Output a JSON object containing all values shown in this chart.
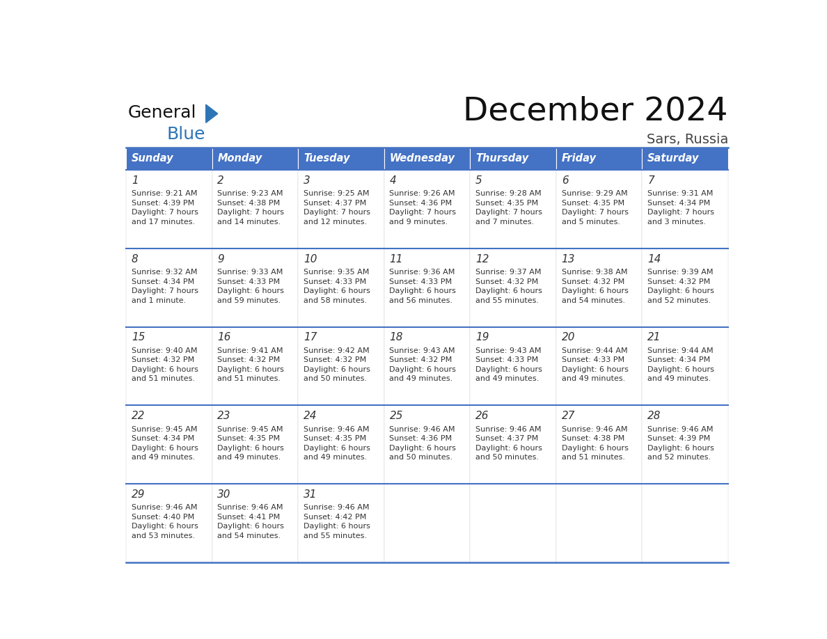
{
  "title": "December 2024",
  "subtitle": "Sars, Russia",
  "header_color": "#4472C4",
  "header_text_color": "#FFFFFF",
  "cell_bg_color": "#FFFFFF",
  "border_color": "#4472C4",
  "text_color": "#333333",
  "days_of_week": [
    "Sunday",
    "Monday",
    "Tuesday",
    "Wednesday",
    "Thursday",
    "Friday",
    "Saturday"
  ],
  "weeks": [
    [
      {
        "day": 1,
        "sunrise": "9:21 AM",
        "sunset": "4:39 PM",
        "daylight_hours": 7,
        "daylight_minutes": 17
      },
      {
        "day": 2,
        "sunrise": "9:23 AM",
        "sunset": "4:38 PM",
        "daylight_hours": 7,
        "daylight_minutes": 14
      },
      {
        "day": 3,
        "sunrise": "9:25 AM",
        "sunset": "4:37 PM",
        "daylight_hours": 7,
        "daylight_minutes": 12
      },
      {
        "day": 4,
        "sunrise": "9:26 AM",
        "sunset": "4:36 PM",
        "daylight_hours": 7,
        "daylight_minutes": 9
      },
      {
        "day": 5,
        "sunrise": "9:28 AM",
        "sunset": "4:35 PM",
        "daylight_hours": 7,
        "daylight_minutes": 7
      },
      {
        "day": 6,
        "sunrise": "9:29 AM",
        "sunset": "4:35 PM",
        "daylight_hours": 7,
        "daylight_minutes": 5
      },
      {
        "day": 7,
        "sunrise": "9:31 AM",
        "sunset": "4:34 PM",
        "daylight_hours": 7,
        "daylight_minutes": 3
      }
    ],
    [
      {
        "day": 8,
        "sunrise": "9:32 AM",
        "sunset": "4:34 PM",
        "daylight_hours": 7,
        "daylight_minutes": 1
      },
      {
        "day": 9,
        "sunrise": "9:33 AM",
        "sunset": "4:33 PM",
        "daylight_hours": 6,
        "daylight_minutes": 59
      },
      {
        "day": 10,
        "sunrise": "9:35 AM",
        "sunset": "4:33 PM",
        "daylight_hours": 6,
        "daylight_minutes": 58
      },
      {
        "day": 11,
        "sunrise": "9:36 AM",
        "sunset": "4:33 PM",
        "daylight_hours": 6,
        "daylight_minutes": 56
      },
      {
        "day": 12,
        "sunrise": "9:37 AM",
        "sunset": "4:32 PM",
        "daylight_hours": 6,
        "daylight_minutes": 55
      },
      {
        "day": 13,
        "sunrise": "9:38 AM",
        "sunset": "4:32 PM",
        "daylight_hours": 6,
        "daylight_minutes": 54
      },
      {
        "day": 14,
        "sunrise": "9:39 AM",
        "sunset": "4:32 PM",
        "daylight_hours": 6,
        "daylight_minutes": 52
      }
    ],
    [
      {
        "day": 15,
        "sunrise": "9:40 AM",
        "sunset": "4:32 PM",
        "daylight_hours": 6,
        "daylight_minutes": 51
      },
      {
        "day": 16,
        "sunrise": "9:41 AM",
        "sunset": "4:32 PM",
        "daylight_hours": 6,
        "daylight_minutes": 51
      },
      {
        "day": 17,
        "sunrise": "9:42 AM",
        "sunset": "4:32 PM",
        "daylight_hours": 6,
        "daylight_minutes": 50
      },
      {
        "day": 18,
        "sunrise": "9:43 AM",
        "sunset": "4:32 PM",
        "daylight_hours": 6,
        "daylight_minutes": 49
      },
      {
        "day": 19,
        "sunrise": "9:43 AM",
        "sunset": "4:33 PM",
        "daylight_hours": 6,
        "daylight_minutes": 49
      },
      {
        "day": 20,
        "sunrise": "9:44 AM",
        "sunset": "4:33 PM",
        "daylight_hours": 6,
        "daylight_minutes": 49
      },
      {
        "day": 21,
        "sunrise": "9:44 AM",
        "sunset": "4:34 PM",
        "daylight_hours": 6,
        "daylight_minutes": 49
      }
    ],
    [
      {
        "day": 22,
        "sunrise": "9:45 AM",
        "sunset": "4:34 PM",
        "daylight_hours": 6,
        "daylight_minutes": 49
      },
      {
        "day": 23,
        "sunrise": "9:45 AM",
        "sunset": "4:35 PM",
        "daylight_hours": 6,
        "daylight_minutes": 49
      },
      {
        "day": 24,
        "sunrise": "9:46 AM",
        "sunset": "4:35 PM",
        "daylight_hours": 6,
        "daylight_minutes": 49
      },
      {
        "day": 25,
        "sunrise": "9:46 AM",
        "sunset": "4:36 PM",
        "daylight_hours": 6,
        "daylight_minutes": 50
      },
      {
        "day": 26,
        "sunrise": "9:46 AM",
        "sunset": "4:37 PM",
        "daylight_hours": 6,
        "daylight_minutes": 50
      },
      {
        "day": 27,
        "sunrise": "9:46 AM",
        "sunset": "4:38 PM",
        "daylight_hours": 6,
        "daylight_minutes": 51
      },
      {
        "day": 28,
        "sunrise": "9:46 AM",
        "sunset": "4:39 PM",
        "daylight_hours": 6,
        "daylight_minutes": 52
      }
    ],
    [
      {
        "day": 29,
        "sunrise": "9:46 AM",
        "sunset": "4:40 PM",
        "daylight_hours": 6,
        "daylight_minutes": 53
      },
      {
        "day": 30,
        "sunrise": "9:46 AM",
        "sunset": "4:41 PM",
        "daylight_hours": 6,
        "daylight_minutes": 54
      },
      {
        "day": 31,
        "sunrise": "9:46 AM",
        "sunset": "4:42 PM",
        "daylight_hours": 6,
        "daylight_minutes": 55
      },
      null,
      null,
      null,
      null
    ]
  ],
  "logo_general_color": "#111111",
  "logo_blue_color": "#2E75B6",
  "logo_triangle_color": "#2E75B6"
}
